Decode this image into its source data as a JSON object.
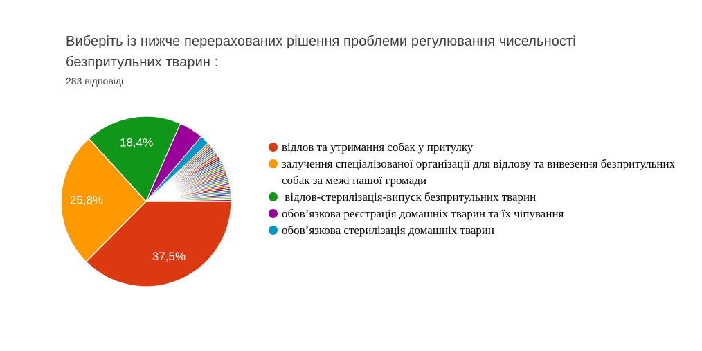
{
  "header": {
    "title": "Виберіть із нижче перерахованих рішення проблеми регулювання чисельності безпритульних тварин :",
    "responses_count": "283 відповіді"
  },
  "chart_data": {
    "type": "pie",
    "title": "Виберіть із нижче перерахованих рішення проблеми регулювання чисельності безпритульних тварин :",
    "total_responses": 283,
    "legend_position": "right",
    "start_angle_compass_deg": 90,
    "direction": "clockwise",
    "slices": [
      {
        "label": "відлов та утримання собак у притулку",
        "pct": 37.5,
        "display_pct": "37,5%",
        "color": "#dc3912"
      },
      {
        "label": "залучення спеціалізованої організації для відлову та вивезення безпритульних собак за межі нашої громади",
        "pct": 25.8,
        "display_pct": "25,8%",
        "color": "#ff9900"
      },
      {
        "label": " відлов-стерилізація-випуск безпритульних тварин",
        "pct": 18.4,
        "display_pct": "18,4%",
        "color": "#109618"
      },
      {
        "label": "обов’язкова реєстрація домашніх тварин та їх чіпування",
        "pct": 4.6,
        "display_pct": null,
        "color": "#990099"
      },
      {
        "label": "обов’язкова стерилізація домашніх тварин",
        "pct": 1.8,
        "display_pct": null,
        "color": "#0099c6"
      }
    ],
    "other_slices": {
      "note_visible_as": "fan of many thin unlabeled slices",
      "count": 34,
      "pct_each": 0.353,
      "colors": [
        "#dd4477",
        "#66aa00",
        "#b82e2e",
        "#316395",
        "#994499",
        "#22aa99",
        "#aaaa11",
        "#6633cc",
        "#e67300",
        "#8b0707",
        "#651067",
        "#329262",
        "#5574a6",
        "#3b3eac",
        "#b77322",
        "#16d620",
        "#b91383"
      ]
    },
    "label_color": "#ffffff",
    "slice_border_color": "#ffffff"
  }
}
